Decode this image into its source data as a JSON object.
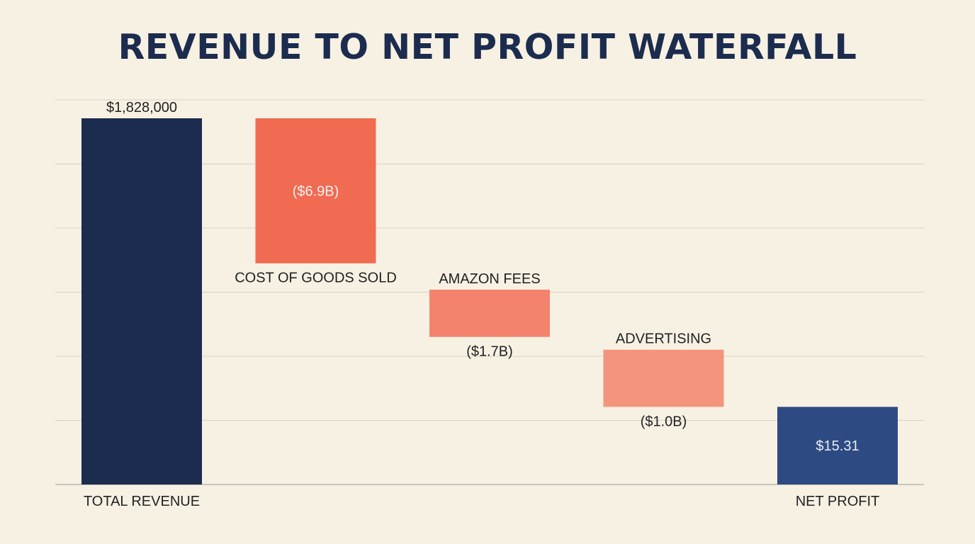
{
  "chart_data": {
    "type": "waterfall",
    "title": "REVENUE TO NET PROFIT WATERFALL",
    "xlabel": "",
    "ylabel": "",
    "categories": [
      "TOTAL REVENUE",
      "COST OF GOODS SOLD",
      "AMAZON FEES",
      "ADVERTISING",
      "NET PROFIT"
    ],
    "value_labels": [
      "$1,828,000",
      "($6.9B)",
      "($1.7B)",
      "($1.0B)",
      "$15.31"
    ],
    "steps": [
      {
        "kind": "total",
        "start": 0,
        "end": 100,
        "color": "#1c2c4e",
        "label_pos": "top",
        "name_pos": "bottom"
      },
      {
        "kind": "decrease",
        "start": 100,
        "end": 60.4,
        "color": "#f06b52",
        "label_pos": "inside",
        "name_pos": "below-bar"
      },
      {
        "kind": "decrease",
        "start": 53.2,
        "end": 40.3,
        "color": "#f3836c",
        "label_pos": "below-bar",
        "name_pos": "above-bar"
      },
      {
        "kind": "decrease",
        "start": 36.8,
        "end": 21.2,
        "color": "#f4947d",
        "label_pos": "below-bar",
        "name_pos": "above-bar"
      },
      {
        "kind": "total",
        "start": 0,
        "end": 21.2,
        "color": "#2e4a82",
        "label_pos": "inside",
        "name_pos": "bottom"
      }
    ],
    "ylim": [
      0,
      100
    ],
    "grid": true,
    "legend": "none"
  }
}
